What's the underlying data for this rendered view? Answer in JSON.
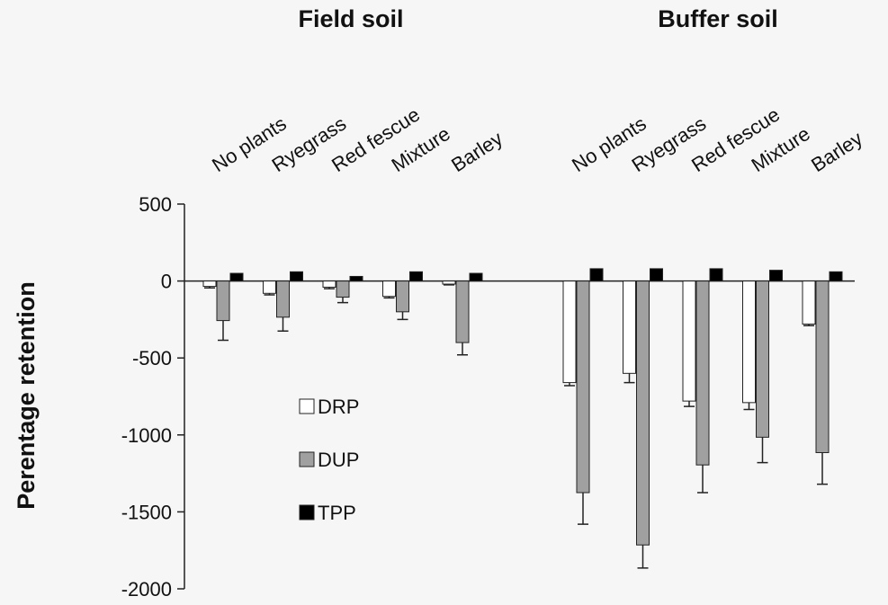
{
  "chart_data": {
    "type": "bar",
    "group_labels": [
      "Field soil",
      "Buffer soil"
    ],
    "y_label": "Perentage retention",
    "categories": [
      "No plants",
      "Ryegrass",
      "Red fescue",
      "Mixture",
      "Barley",
      "No plants",
      "Ryegrass",
      "Red fescue",
      "Mixture",
      "Barley"
    ],
    "series": [
      {
        "name": "DRP",
        "color": "#ffffff",
        "values": [
          -35,
          -80,
          -40,
          -100,
          -20,
          -660,
          -600,
          -780,
          -790,
          -280
        ],
        "errors": [
          10,
          10,
          10,
          10,
          5,
          20,
          60,
          35,
          45,
          10
        ]
      },
      {
        "name": "DUP",
        "color": "#a0a0a0",
        "values": [
          -257,
          -235,
          -105,
          -200,
          -400,
          -1375,
          -1715,
          -1195,
          -1015,
          -1115
        ],
        "errors": [
          128,
          90,
          35,
          50,
          80,
          205,
          150,
          180,
          165,
          205
        ]
      },
      {
        "name": "TPP",
        "color": "#000000",
        "values": [
          50,
          60,
          30,
          60,
          50,
          80,
          80,
          80,
          70,
          60
        ]
      }
    ],
    "ylim": [
      -2000,
      500
    ],
    "yticks": [
      -2000,
      -1500,
      -1000,
      -500,
      0,
      500
    ]
  }
}
